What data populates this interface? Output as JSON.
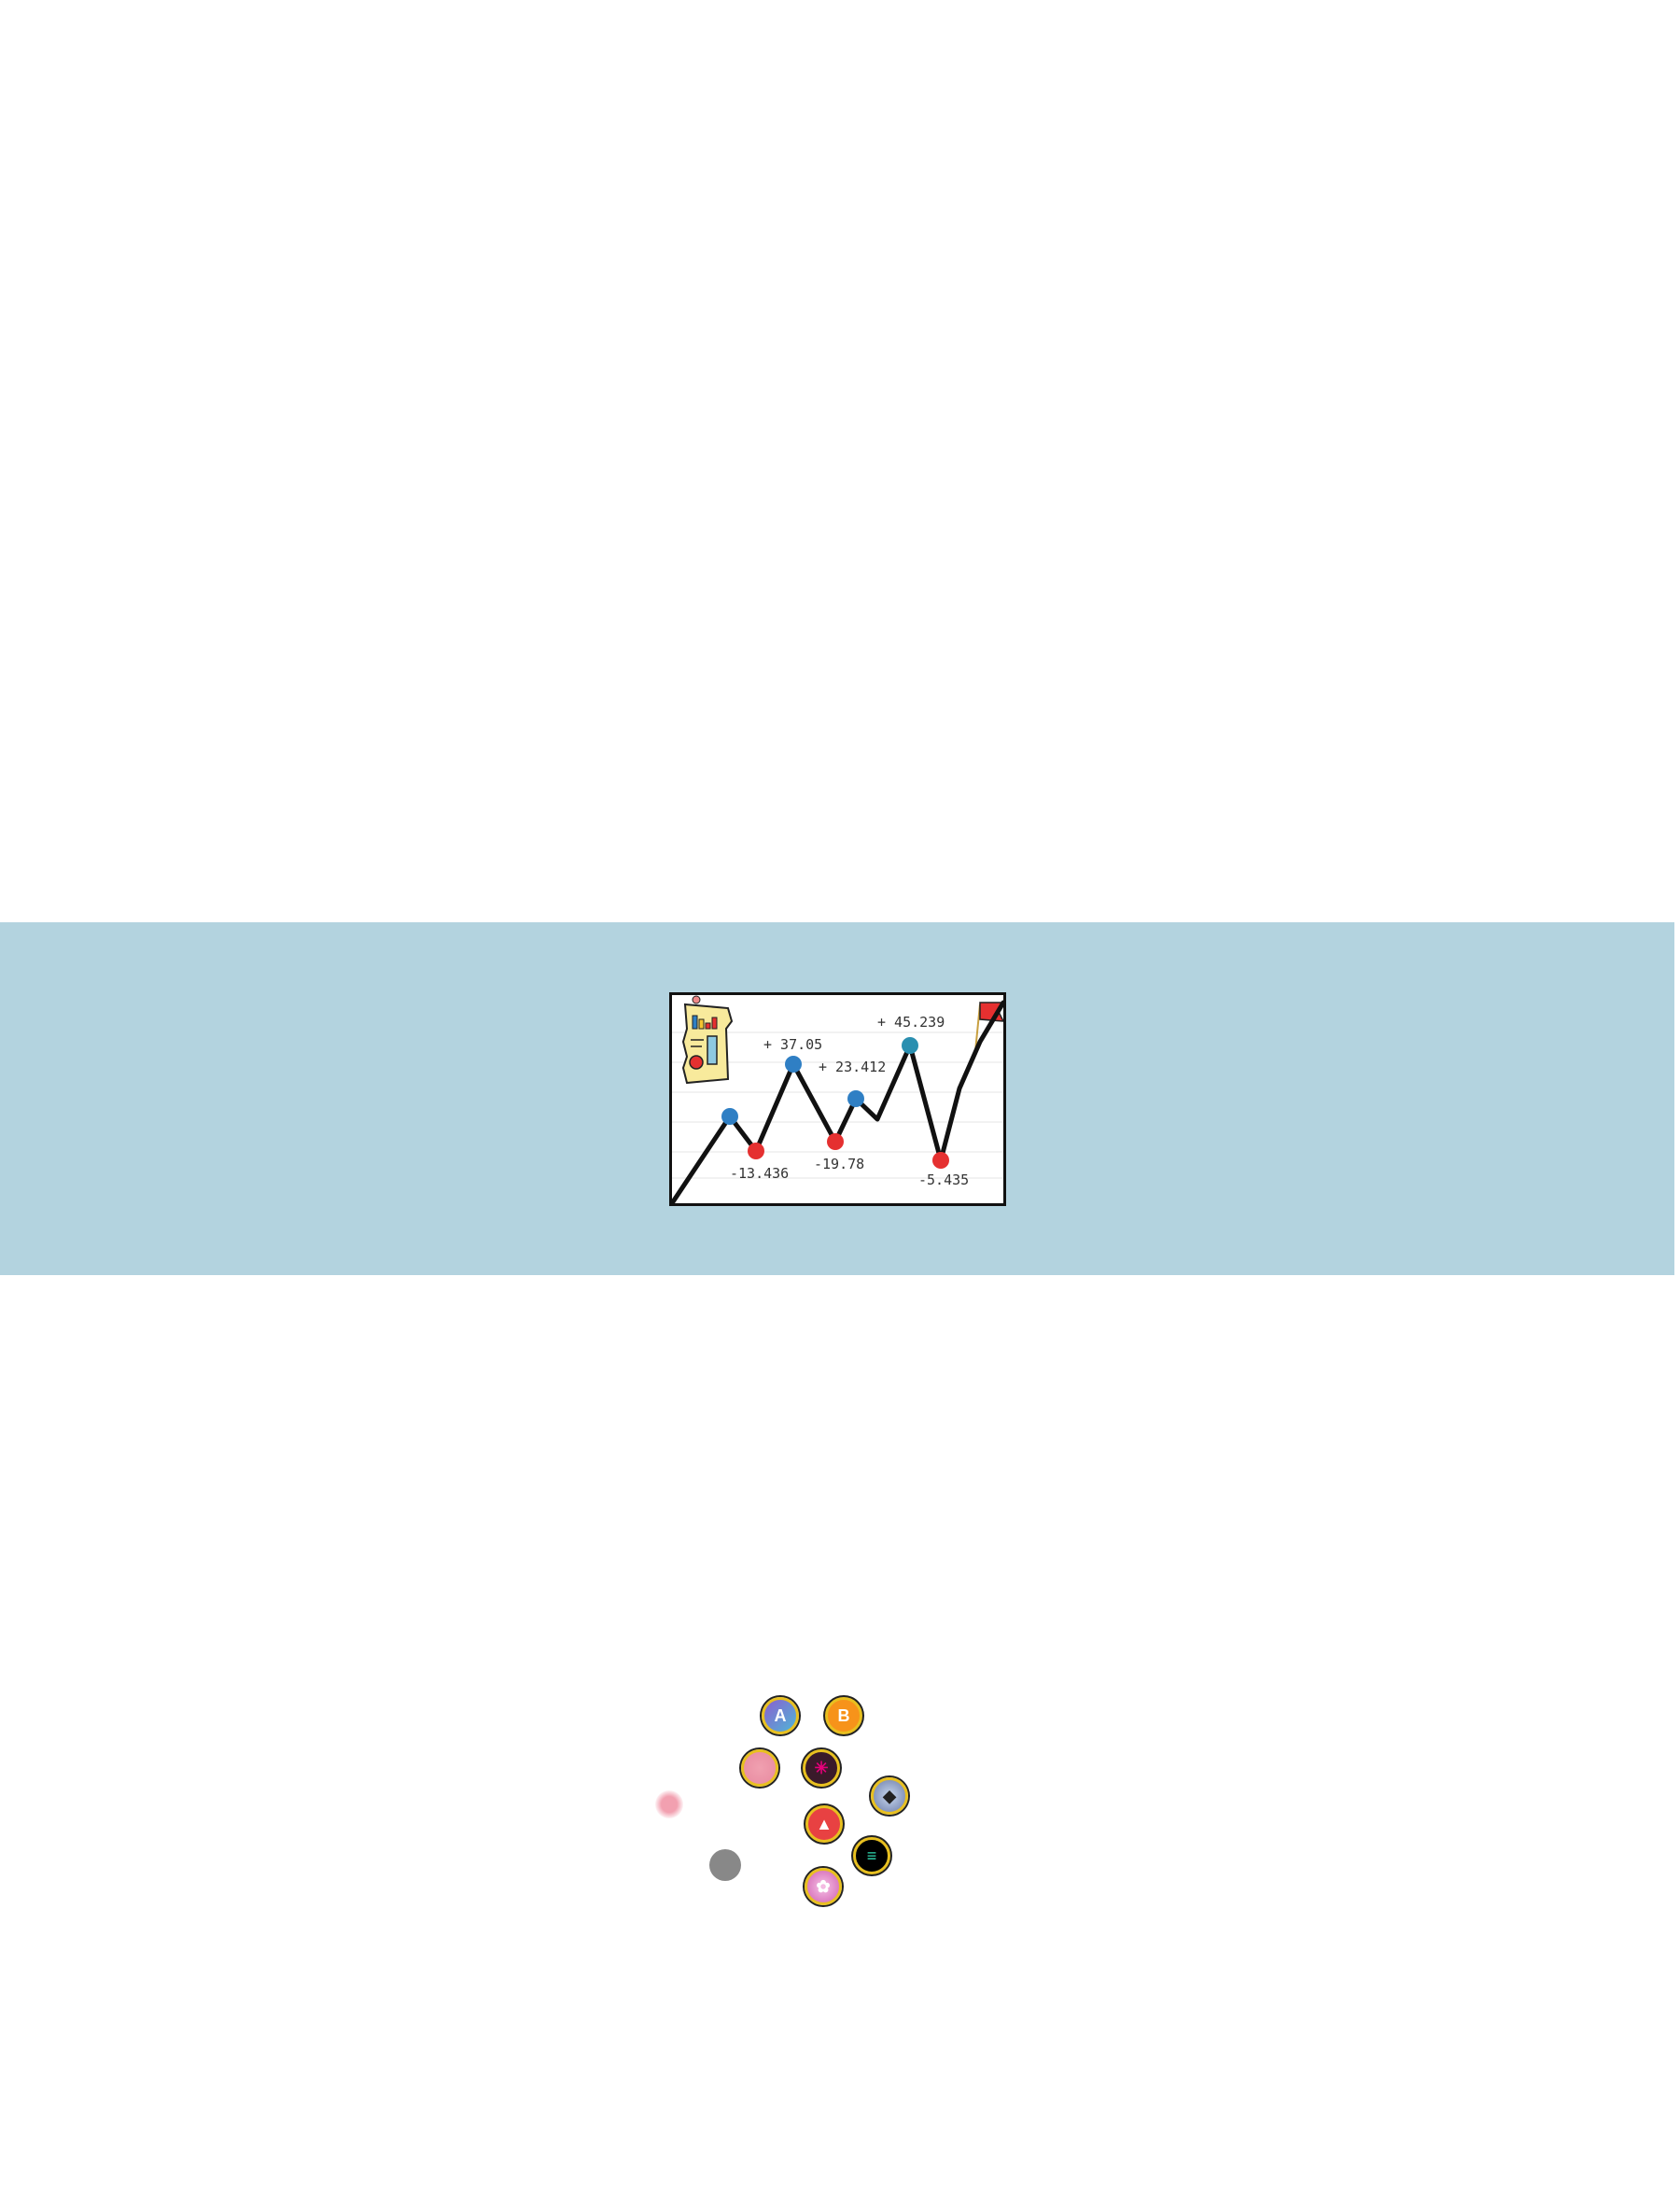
{
  "chart_data": {
    "type": "line",
    "title": "",
    "xlabel": "",
    "ylabel": "",
    "annotations": {
      "gains": [
        "+ 37.05",
        "+ 23.412",
        "+ 45.239"
      ],
      "losses": [
        "-13.436",
        "-19.78",
        "-5.435"
      ]
    }
  },
  "colors": {
    "band": "#b3d3df",
    "gain_point": "#2f7fc4",
    "loss_point": "#e53030",
    "line": "#111111",
    "coin_rim": "#e8c020"
  },
  "icons": [
    "clipboard-report-icon",
    "flag-icon",
    "aave-coin-icon",
    "bitcoin-coin-icon",
    "pink-coin-icon",
    "polkadot-coin-icon",
    "ethereum-coin-icon",
    "avalanche-coin-icon",
    "solana-coin-icon",
    "unicorn-coin-icon"
  ],
  "coins": {
    "aave": "A",
    "bitcoin": "B",
    "polkadot": "✳",
    "ethereum": "◆",
    "avalanche": "▲",
    "solana": "≡",
    "unicorn": "✿"
  }
}
